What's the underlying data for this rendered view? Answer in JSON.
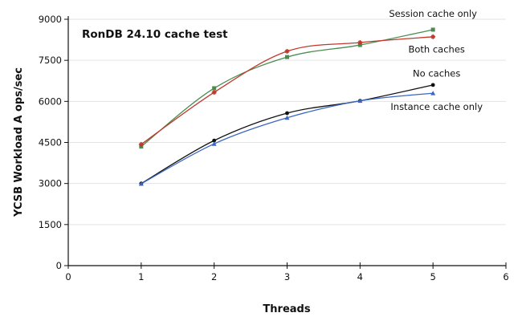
{
  "chart_data": {
    "type": "line",
    "title": "RonDB 24.10 cache test",
    "xlabel": "Threads",
    "ylabel": "YCSB Workload A ops/sec",
    "xlim": [
      0,
      6
    ],
    "ylim": [
      0,
      9000
    ],
    "xticks": [
      "0",
      "1",
      "2",
      "3",
      "4",
      "5",
      "6"
    ],
    "yticks": [
      "0",
      "1500",
      "3000",
      "4500",
      "6000",
      "7500",
      "9000"
    ],
    "grid": "horizontal",
    "legend": "inline annotations",
    "x": [
      1,
      2,
      3,
      4,
      5
    ],
    "series": [
      {
        "name": "Session cache only",
        "color": "#4a8c4f",
        "marker": "square",
        "values": [
          4350,
          6480,
          7620,
          8060,
          8620
        ]
      },
      {
        "name": "Both caches",
        "color": "#c0392b",
        "marker": "star",
        "values": [
          4430,
          6330,
          7830,
          8150,
          8360
        ]
      },
      {
        "name": "No caches",
        "color": "#111111",
        "marker": "circle",
        "values": [
          3000,
          4570,
          5570,
          6020,
          6600
        ]
      },
      {
        "name": "Instance cache only",
        "color": "#3a66c4",
        "marker": "triangle",
        "values": [
          2990,
          4450,
          5400,
          6020,
          6300
        ]
      }
    ],
    "annotations": [
      {
        "text": "Session cache only",
        "x": 5.0,
        "y": 9200
      },
      {
        "text": "Both caches",
        "x": 5.05,
        "y": 7900
      },
      {
        "text": "No caches",
        "x": 5.05,
        "y": 7020
      },
      {
        "text": "Instance cache only",
        "x": 5.05,
        "y": 5800
      }
    ]
  }
}
